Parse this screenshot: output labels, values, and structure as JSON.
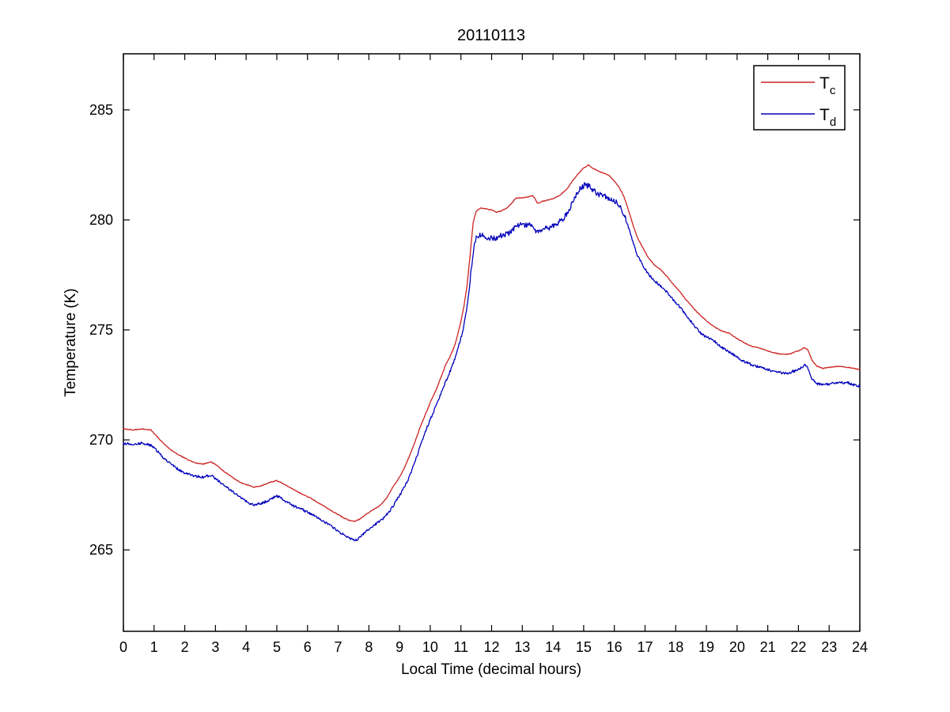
{
  "figure": {
    "background": "#ffffff",
    "axis_color": "#000000"
  },
  "chart_data": {
    "type": "line",
    "title": "20110113",
    "xlabel": "Local Time (decimal hours)",
    "ylabel": "Temperature (K)",
    "xlim": [
      0,
      24
    ],
    "ylim": [
      261.3,
      287.55
    ],
    "xticks": [
      0,
      1,
      2,
      3,
      4,
      5,
      6,
      7,
      8,
      9,
      10,
      11,
      12,
      13,
      14,
      15,
      16,
      17,
      18,
      19,
      20,
      21,
      22,
      23,
      24
    ],
    "yticks": [
      265,
      270,
      275,
      280,
      285
    ],
    "grid": false,
    "legend": {
      "position": "northeast",
      "entries": [
        {
          "label_main": "T",
          "label_sub": "c",
          "color": "#cc2222"
        },
        {
          "label_main": "T",
          "label_sub": "d",
          "color": "#0000bb"
        }
      ]
    },
    "series": [
      {
        "name": "Tc",
        "color": "#cc2222",
        "points": [
          [
            0,
            270.5
          ],
          [
            0.3,
            270.45
          ],
          [
            0.6,
            270.5
          ],
          [
            0.9,
            270.45
          ],
          [
            1.1,
            270.15
          ],
          [
            1.3,
            269.85
          ],
          [
            1.5,
            269.6
          ],
          [
            1.7,
            269.4
          ],
          [
            1.9,
            269.25
          ],
          [
            2.1,
            269.1
          ],
          [
            2.35,
            268.95
          ],
          [
            2.6,
            268.9
          ],
          [
            2.85,
            269.0
          ],
          [
            3.05,
            268.85
          ],
          [
            3.25,
            268.6
          ],
          [
            3.45,
            268.4
          ],
          [
            3.65,
            268.2
          ],
          [
            3.85,
            268.05
          ],
          [
            4.05,
            267.95
          ],
          [
            4.25,
            267.85
          ],
          [
            4.45,
            267.9
          ],
          [
            4.65,
            268.0
          ],
          [
            4.85,
            268.1
          ],
          [
            5.0,
            268.15
          ],
          [
            5.15,
            268.05
          ],
          [
            5.35,
            267.9
          ],
          [
            5.55,
            267.75
          ],
          [
            5.8,
            267.55
          ],
          [
            6.1,
            267.35
          ],
          [
            6.4,
            267.1
          ],
          [
            6.7,
            266.85
          ],
          [
            7.0,
            266.6
          ],
          [
            7.2,
            266.45
          ],
          [
            7.4,
            266.32
          ],
          [
            7.55,
            266.3
          ],
          [
            7.7,
            266.4
          ],
          [
            7.9,
            266.6
          ],
          [
            8.1,
            266.8
          ],
          [
            8.35,
            267.0
          ],
          [
            8.6,
            267.4
          ],
          [
            8.8,
            267.9
          ],
          [
            9.0,
            268.3
          ],
          [
            9.15,
            268.7
          ],
          [
            9.3,
            269.2
          ],
          [
            9.5,
            269.9
          ],
          [
            9.65,
            270.5
          ],
          [
            9.8,
            271.0
          ],
          [
            10.0,
            271.7
          ],
          [
            10.2,
            272.3
          ],
          [
            10.35,
            272.85
          ],
          [
            10.5,
            273.4
          ],
          [
            10.65,
            273.8
          ],
          [
            10.8,
            274.3
          ],
          [
            10.9,
            274.8
          ],
          [
            11.0,
            275.4
          ],
          [
            11.1,
            276.1
          ],
          [
            11.2,
            277.0
          ],
          [
            11.3,
            278.4
          ],
          [
            11.4,
            279.9
          ],
          [
            11.5,
            280.4
          ],
          [
            11.65,
            280.55
          ],
          [
            11.8,
            280.5
          ],
          [
            12.0,
            280.45
          ],
          [
            12.15,
            280.35
          ],
          [
            12.3,
            280.4
          ],
          [
            12.5,
            280.55
          ],
          [
            12.65,
            280.75
          ],
          [
            12.8,
            281.0
          ],
          [
            13.0,
            281.0
          ],
          [
            13.2,
            281.05
          ],
          [
            13.35,
            281.1
          ],
          [
            13.5,
            280.75
          ],
          [
            13.65,
            280.85
          ],
          [
            13.85,
            280.9
          ],
          [
            14.05,
            281.0
          ],
          [
            14.25,
            281.15
          ],
          [
            14.45,
            281.4
          ],
          [
            14.65,
            281.8
          ],
          [
            14.85,
            282.15
          ],
          [
            15.0,
            282.35
          ],
          [
            15.15,
            282.5
          ],
          [
            15.3,
            282.35
          ],
          [
            15.5,
            282.2
          ],
          [
            15.7,
            282.1
          ],
          [
            15.85,
            282.0
          ],
          [
            16.0,
            281.75
          ],
          [
            16.15,
            281.5
          ],
          [
            16.3,
            281.1
          ],
          [
            16.45,
            280.5
          ],
          [
            16.6,
            279.8
          ],
          [
            16.75,
            279.2
          ],
          [
            16.9,
            278.8
          ],
          [
            17.1,
            278.3
          ],
          [
            17.3,
            277.95
          ],
          [
            17.5,
            277.75
          ],
          [
            17.7,
            277.45
          ],
          [
            17.9,
            277.1
          ],
          [
            18.1,
            276.8
          ],
          [
            18.35,
            276.35
          ],
          [
            18.6,
            275.95
          ],
          [
            18.85,
            275.6
          ],
          [
            19.1,
            275.3
          ],
          [
            19.3,
            275.1
          ],
          [
            19.5,
            274.95
          ],
          [
            19.75,
            274.85
          ],
          [
            20.0,
            274.6
          ],
          [
            20.25,
            274.4
          ],
          [
            20.5,
            274.25
          ],
          [
            20.8,
            274.15
          ],
          [
            21.1,
            274.0
          ],
          [
            21.4,
            273.9
          ],
          [
            21.7,
            273.9
          ],
          [
            22.0,
            274.05
          ],
          [
            22.2,
            274.2
          ],
          [
            22.3,
            274.1
          ],
          [
            22.45,
            273.6
          ],
          [
            22.6,
            273.35
          ],
          [
            22.8,
            273.25
          ],
          [
            23.0,
            273.3
          ],
          [
            23.3,
            273.35
          ],
          [
            23.6,
            273.3
          ],
          [
            23.8,
            273.25
          ],
          [
            24.0,
            273.2
          ]
        ]
      },
      {
        "name": "Td",
        "color": "#0000bb",
        "points": [
          [
            0,
            269.85
          ],
          [
            0.3,
            269.8
          ],
          [
            0.6,
            269.85
          ],
          [
            0.9,
            269.75
          ],
          [
            1.1,
            269.5
          ],
          [
            1.3,
            269.2
          ],
          [
            1.5,
            268.95
          ],
          [
            1.7,
            268.75
          ],
          [
            1.9,
            268.55
          ],
          [
            2.1,
            268.45
          ],
          [
            2.35,
            268.35
          ],
          [
            2.6,
            268.3
          ],
          [
            2.85,
            268.4
          ],
          [
            3.05,
            268.2
          ],
          [
            3.25,
            267.95
          ],
          [
            3.45,
            267.75
          ],
          [
            3.65,
            267.55
          ],
          [
            3.85,
            267.35
          ],
          [
            4.05,
            267.15
          ],
          [
            4.25,
            267.05
          ],
          [
            4.45,
            267.1
          ],
          [
            4.65,
            267.2
          ],
          [
            4.85,
            267.35
          ],
          [
            5.0,
            267.45
          ],
          [
            5.15,
            267.35
          ],
          [
            5.35,
            267.15
          ],
          [
            5.55,
            267.0
          ],
          [
            5.8,
            266.85
          ],
          [
            6.1,
            266.65
          ],
          [
            6.4,
            266.4
          ],
          [
            6.7,
            266.15
          ],
          [
            7.0,
            265.85
          ],
          [
            7.2,
            265.65
          ],
          [
            7.4,
            265.5
          ],
          [
            7.6,
            265.45
          ],
          [
            7.8,
            265.7
          ],
          [
            8.0,
            265.95
          ],
          [
            8.2,
            266.15
          ],
          [
            8.45,
            266.4
          ],
          [
            8.7,
            266.8
          ],
          [
            8.9,
            267.25
          ],
          [
            9.1,
            267.7
          ],
          [
            9.25,
            268.1
          ],
          [
            9.4,
            268.6
          ],
          [
            9.55,
            269.2
          ],
          [
            9.7,
            269.8
          ],
          [
            9.85,
            270.4
          ],
          [
            10.05,
            271.1
          ],
          [
            10.25,
            271.75
          ],
          [
            10.4,
            272.3
          ],
          [
            10.55,
            272.8
          ],
          [
            10.7,
            273.3
          ],
          [
            10.85,
            273.9
          ],
          [
            10.95,
            274.4
          ],
          [
            11.05,
            274.9
          ],
          [
            11.15,
            275.6
          ],
          [
            11.25,
            276.6
          ],
          [
            11.35,
            277.9
          ],
          [
            11.45,
            279.0
          ],
          [
            11.55,
            279.3
          ],
          [
            11.7,
            279.3
          ],
          [
            11.9,
            279.2
          ],
          [
            12.1,
            279.15
          ],
          [
            12.3,
            279.3
          ],
          [
            12.5,
            279.35
          ],
          [
            12.65,
            279.5
          ],
          [
            12.8,
            279.7
          ],
          [
            12.95,
            279.8
          ],
          [
            13.1,
            279.75
          ],
          [
            13.25,
            279.8
          ],
          [
            13.4,
            279.5
          ],
          [
            13.55,
            279.45
          ],
          [
            13.7,
            279.6
          ],
          [
            13.9,
            279.65
          ],
          [
            14.1,
            279.8
          ],
          [
            14.3,
            280.0
          ],
          [
            14.5,
            280.35
          ],
          [
            14.7,
            281.0
          ],
          [
            14.9,
            281.45
          ],
          [
            15.05,
            281.6
          ],
          [
            15.2,
            281.5
          ],
          [
            15.35,
            281.3
          ],
          [
            15.5,
            281.15
          ],
          [
            15.7,
            281.05
          ],
          [
            15.85,
            281.0
          ],
          [
            16.0,
            280.85
          ],
          [
            16.15,
            280.7
          ],
          [
            16.3,
            280.3
          ],
          [
            16.45,
            279.7
          ],
          [
            16.6,
            279.0
          ],
          [
            16.75,
            278.4
          ],
          [
            16.9,
            278.0
          ],
          [
            17.1,
            277.55
          ],
          [
            17.3,
            277.25
          ],
          [
            17.5,
            277.0
          ],
          [
            17.7,
            276.75
          ],
          [
            17.9,
            276.4
          ],
          [
            18.1,
            276.1
          ],
          [
            18.35,
            275.65
          ],
          [
            18.6,
            275.2
          ],
          [
            18.85,
            274.8
          ],
          [
            19.1,
            274.6
          ],
          [
            19.3,
            274.45
          ],
          [
            19.5,
            274.2
          ],
          [
            19.75,
            274.0
          ],
          [
            20.0,
            273.75
          ],
          [
            20.25,
            273.55
          ],
          [
            20.5,
            273.4
          ],
          [
            20.8,
            273.3
          ],
          [
            21.1,
            273.15
          ],
          [
            21.4,
            273.05
          ],
          [
            21.7,
            273.05
          ],
          [
            22.0,
            273.2
          ],
          [
            22.2,
            273.4
          ],
          [
            22.3,
            273.3
          ],
          [
            22.45,
            272.75
          ],
          [
            22.6,
            272.55
          ],
          [
            22.8,
            272.5
          ],
          [
            23.0,
            272.55
          ],
          [
            23.3,
            272.6
          ],
          [
            23.6,
            272.6
          ],
          [
            23.8,
            272.5
          ],
          [
            24.0,
            272.45
          ]
        ]
      }
    ],
    "render_hints": {
      "noise_seed": 20110113,
      "noise": {
        "Tc": 0.018,
        "Td": 0.055,
        "Td_day": 0.125,
        "day_range": [
          11.3,
          16.4
        ]
      }
    }
  }
}
